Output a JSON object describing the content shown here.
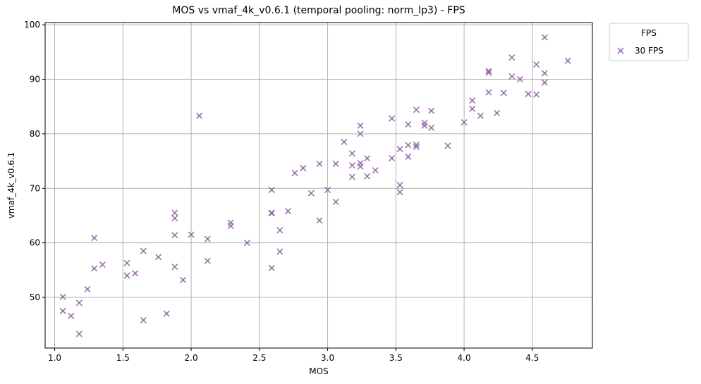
{
  "chart_data": {
    "type": "scatter",
    "title": "MOS vs vmaf_4k_v0.6.1 (temporal pooling: norm_lp3) - FPS",
    "xlabel": "MOS",
    "ylabel": "vmaf_4k_v0.6.1",
    "xlim": [
      0.93,
      4.94
    ],
    "ylim": [
      40.7,
      100.4
    ],
    "xticks": [
      1.0,
      1.5,
      2.0,
      2.5,
      3.0,
      3.5,
      4.0,
      4.5
    ],
    "xtick_labels": [
      "1.0",
      "1.5",
      "2.0",
      "2.5",
      "3.0",
      "3.5",
      "4.0",
      "4.5"
    ],
    "yticks": [
      50,
      60,
      70,
      80,
      90,
      100
    ],
    "ytick_labels": [
      "50",
      "60",
      "70",
      "80",
      "90",
      "100"
    ],
    "grid": true,
    "legend": {
      "title": "FPS",
      "placement": "outside-top-right"
    },
    "marker": "x",
    "series": [
      {
        "name": "30 FPS",
        "color": "#8e5a9e",
        "points": [
          [
            1.06,
            50.1
          ],
          [
            1.06,
            47.5
          ],
          [
            1.12,
            46.6
          ],
          [
            1.18,
            43.3
          ],
          [
            1.18,
            49.0
          ],
          [
            1.24,
            51.5
          ],
          [
            1.29,
            55.3
          ],
          [
            1.29,
            60.9
          ],
          [
            1.35,
            56.0
          ],
          [
            1.53,
            56.3
          ],
          [
            1.53,
            54.0
          ],
          [
            1.59,
            54.4
          ],
          [
            1.65,
            58.5
          ],
          [
            1.65,
            45.8
          ],
          [
            1.76,
            57.4
          ],
          [
            1.82,
            47.0
          ],
          [
            1.88,
            65.5
          ],
          [
            1.88,
            64.5
          ],
          [
            1.88,
            61.4
          ],
          [
            1.88,
            55.6
          ],
          [
            1.94,
            53.2
          ],
          [
            2.0,
            61.5
          ],
          [
            2.06,
            83.3
          ],
          [
            2.12,
            60.7
          ],
          [
            2.12,
            56.7
          ],
          [
            2.29,
            63.7
          ],
          [
            2.29,
            63.1
          ],
          [
            2.41,
            60.0
          ],
          [
            2.59,
            69.7
          ],
          [
            2.59,
            65.5
          ],
          [
            2.59,
            65.4
          ],
          [
            2.59,
            55.4
          ],
          [
            2.65,
            62.3
          ],
          [
            2.65,
            58.4
          ],
          [
            2.71,
            65.8
          ],
          [
            2.76,
            72.8
          ],
          [
            2.82,
            73.7
          ],
          [
            2.88,
            69.1
          ],
          [
            2.94,
            74.5
          ],
          [
            2.94,
            64.1
          ],
          [
            3.0,
            69.7
          ],
          [
            3.06,
            74.5
          ],
          [
            3.06,
            67.5
          ],
          [
            3.12,
            78.5
          ],
          [
            3.18,
            76.4
          ],
          [
            3.18,
            74.2
          ],
          [
            3.18,
            72.1
          ],
          [
            3.24,
            81.5
          ],
          [
            3.24,
            80.0
          ],
          [
            3.24,
            74.6
          ],
          [
            3.24,
            74.0
          ],
          [
            3.29,
            75.5
          ],
          [
            3.29,
            72.2
          ],
          [
            3.35,
            73.3
          ],
          [
            3.47,
            82.8
          ],
          [
            3.47,
            75.5
          ],
          [
            3.53,
            77.2
          ],
          [
            3.53,
            70.6
          ],
          [
            3.53,
            69.3
          ],
          [
            3.59,
            81.7
          ],
          [
            3.59,
            77.9
          ],
          [
            3.59,
            75.8
          ],
          [
            3.65,
            84.4
          ],
          [
            3.65,
            78.0
          ],
          [
            3.65,
            77.6
          ],
          [
            3.71,
            82.0
          ],
          [
            3.71,
            81.5
          ],
          [
            3.76,
            84.2
          ],
          [
            3.76,
            81.1
          ],
          [
            3.88,
            77.8
          ],
          [
            4.0,
            82.1
          ],
          [
            4.06,
            86.1
          ],
          [
            4.06,
            84.6
          ],
          [
            4.12,
            83.3
          ],
          [
            4.18,
            91.5
          ],
          [
            4.18,
            91.2
          ],
          [
            4.18,
            87.6
          ],
          [
            4.24,
            83.8
          ],
          [
            4.29,
            87.5
          ],
          [
            4.35,
            94.0
          ],
          [
            4.35,
            90.5
          ],
          [
            4.41,
            90.0
          ],
          [
            4.47,
            87.3
          ],
          [
            4.53,
            92.7
          ],
          [
            4.53,
            87.2
          ],
          [
            4.59,
            97.7
          ],
          [
            4.59,
            91.1
          ],
          [
            4.59,
            89.4
          ],
          [
            4.76,
            93.4
          ]
        ]
      }
    ]
  }
}
